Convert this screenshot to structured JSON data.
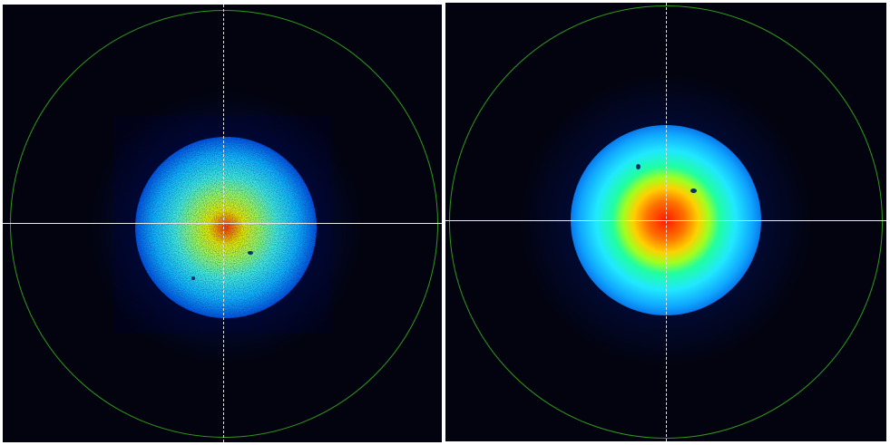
{
  "panels": [
    {
      "id": "left",
      "description_color_map": [
        "#000a3a",
        "#0030c0",
        "#00c0ff",
        "#40ffb0",
        "#e0ff00",
        "#ff2000"
      ],
      "reticle_color": "#e8e8e8",
      "aperture_color": "#2f9a1c"
    },
    {
      "id": "right",
      "description_color_map": [
        "#000a3a",
        "#0030c0",
        "#00c0ff",
        "#00ff80",
        "#ffff00",
        "#ff2000"
      ],
      "reticle_color": "#e8e8e8",
      "aperture_color": "#2f9a1c"
    }
  ]
}
